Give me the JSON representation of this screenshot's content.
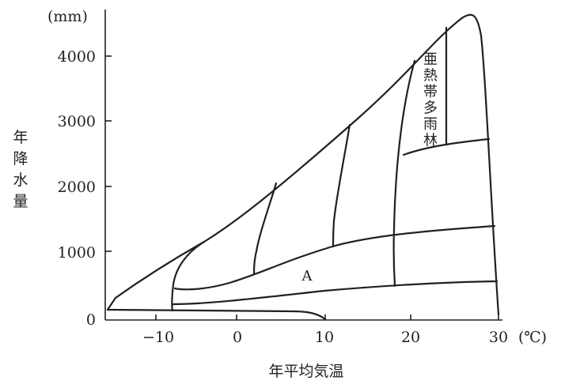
{
  "diagram": {
    "y_unit": "(mm)",
    "x_unit": "(℃)",
    "y_title": "年降水量",
    "x_title": "年平均気温",
    "y_ticks": [
      "0",
      "1000",
      "2000",
      "3000",
      "4000"
    ],
    "x_ticks": [
      "−10",
      "0",
      "10",
      "20",
      "30"
    ],
    "label_subtropical": "亜熱帯多雨林",
    "label_a": "A"
  }
}
